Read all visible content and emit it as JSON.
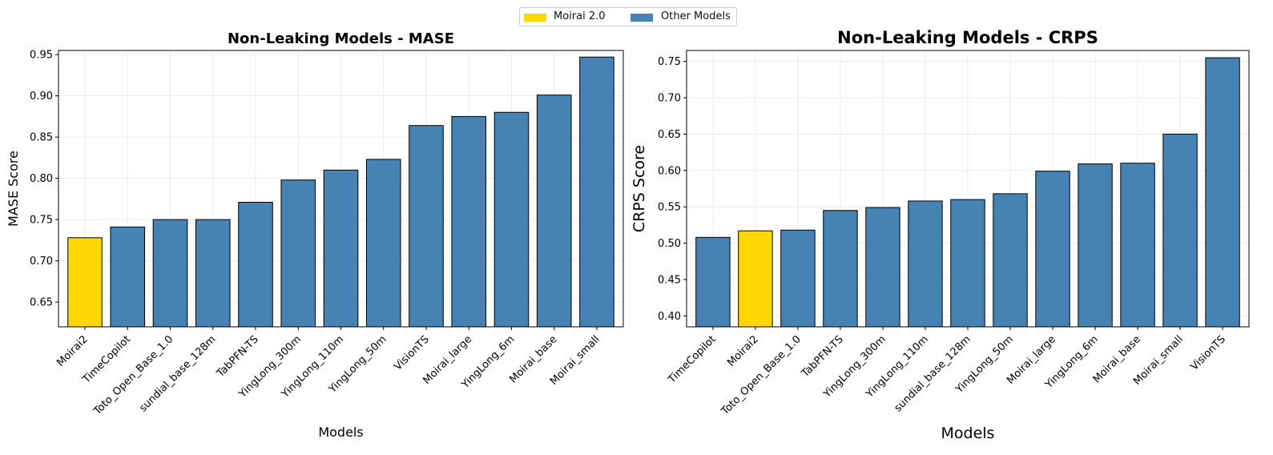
{
  "legend": {
    "items": [
      {
        "label": "Moirai 2.0",
        "color": "#FFD700"
      },
      {
        "label": "Other Models",
        "color": "#4682B4"
      }
    ]
  },
  "colors": {
    "highlight": "#FFD700",
    "other": "#4682B4",
    "edge": "#000000",
    "grid": "#e6e6e6"
  },
  "chart_data": [
    {
      "type": "bar",
      "title": "Non-Leaking Models - MASE",
      "xlabel": "Models",
      "ylabel": "MASE Score",
      "ylim": [
        0.62,
        0.955
      ],
      "yticks": [
        0.65,
        0.7,
        0.75,
        0.8,
        0.85,
        0.9,
        0.95
      ],
      "grid": true,
      "highlight": "Moirai2",
      "categories": [
        "Moirai2",
        "TimeCopilot",
        "Toto_Open_Base_1.0",
        "sundial_base_128m",
        "TabPFN-TS",
        "YingLong_300m",
        "YingLong_110m",
        "YingLong_50m",
        "VisionTS",
        "Moirai_large",
        "YingLong_6m",
        "Moirai_base",
        "Moirai_small"
      ],
      "values": [
        0.728,
        0.741,
        0.75,
        0.75,
        0.771,
        0.798,
        0.81,
        0.823,
        0.864,
        0.875,
        0.88,
        0.901,
        0.947
      ]
    },
    {
      "type": "bar",
      "title": "Non-Leaking Models - CRPS",
      "xlabel": "Models",
      "ylabel": "CRPS Score",
      "ylim": [
        0.385,
        0.765
      ],
      "yticks": [
        0.4,
        0.45,
        0.5,
        0.55,
        0.6,
        0.65,
        0.7,
        0.75
      ],
      "grid": true,
      "highlight": "Moirai2",
      "categories": [
        "TimeCopilot",
        "Moirai2",
        "Toto_Open_Base_1.0",
        "TabPFN-TS",
        "YingLong_300m",
        "YingLong_110m",
        "sundial_base_128m",
        "YingLong_50m",
        "Moirai_large",
        "YingLong_6m",
        "Moirai_base",
        "Moirai_small",
        "VisionTS"
      ],
      "values": [
        0.508,
        0.517,
        0.518,
        0.545,
        0.549,
        0.558,
        0.56,
        0.568,
        0.599,
        0.609,
        0.61,
        0.65,
        0.755
      ]
    }
  ]
}
